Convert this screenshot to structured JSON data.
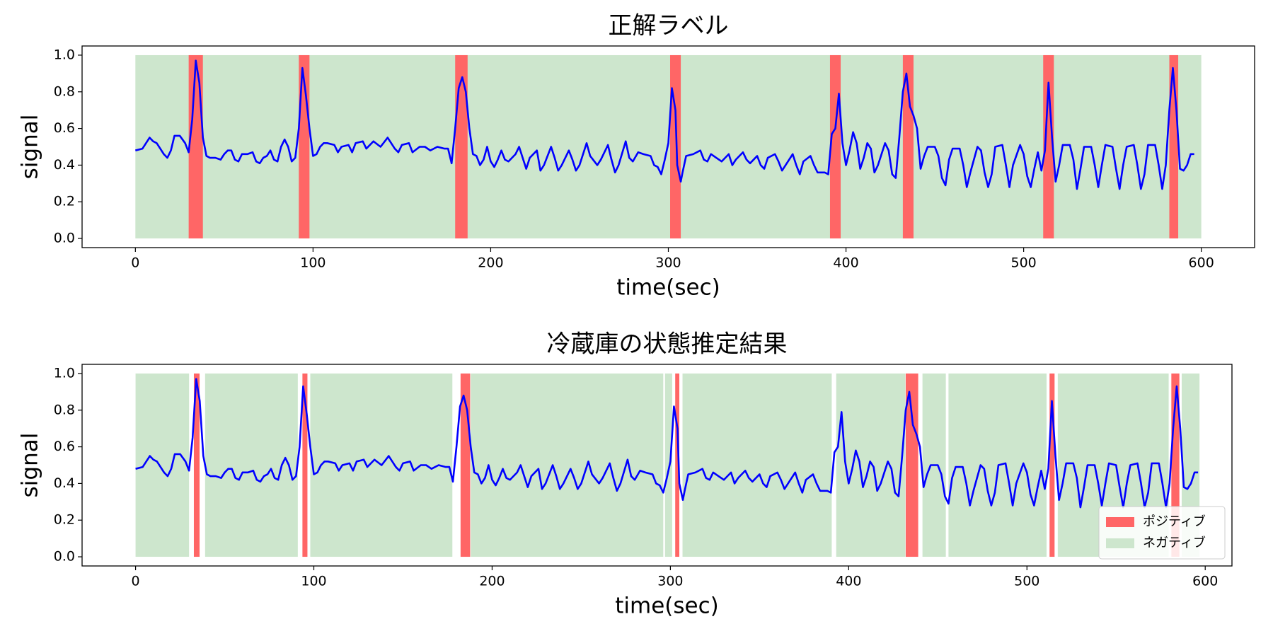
{
  "chart_data": [
    {
      "type": "line",
      "title": "正解ラベル",
      "xlabel": "time(sec)",
      "ylabel": "signal",
      "color": "#0000ff",
      "xlim": [
        -30,
        630
      ],
      "ylim": [
        -0.05,
        1.05
      ],
      "xticks": [
        0,
        100,
        200,
        300,
        400,
        500,
        600
      ],
      "yticks": [
        {
          "value": 0,
          "label": "0.0"
        },
        {
          "value": 0.2,
          "label": "0.2"
        },
        {
          "value": 0.4,
          "label": "0.4"
        },
        {
          "value": 0.6,
          "label": "0.6"
        },
        {
          "value": 0.8,
          "label": "0.8"
        },
        {
          "value": 1,
          "label": "1.0"
        }
      ],
      "regions": [
        {
          "color": "#cde6cd",
          "intervals": [
            [
              0,
              600
            ]
          ]
        },
        {
          "color": "#ff6666",
          "intervals": [
            [
              30,
              38
            ],
            [
              92,
              98
            ],
            [
              180,
              187
            ],
            [
              301,
              307
            ],
            [
              391,
              397
            ],
            [
              432,
              438
            ],
            [
              511,
              517
            ],
            [
              582,
              587
            ]
          ]
        }
      ],
      "x": [
        0,
        4,
        6,
        8,
        10,
        12,
        14,
        16,
        18,
        20,
        22,
        25,
        28,
        30,
        32,
        34,
        36,
        38,
        40,
        42,
        45,
        48,
        50,
        52,
        54,
        56,
        58,
        60,
        63,
        66,
        68,
        70,
        72,
        74,
        76,
        78,
        80,
        82,
        84,
        86,
        88,
        90,
        92,
        94,
        96,
        98,
        100,
        102,
        104,
        106,
        108,
        112,
        114,
        116,
        120,
        122,
        124,
        128,
        130,
        134,
        138,
        142,
        146,
        148,
        150,
        154,
        156,
        160,
        163,
        166,
        170,
        174,
        176,
        178,
        180,
        182,
        184,
        186,
        188,
        190,
        192,
        194,
        196,
        198,
        200,
        202,
        204,
        206,
        208,
        210,
        214,
        216,
        218,
        220,
        222,
        226,
        228,
        230,
        234,
        236,
        238,
        240,
        244,
        246,
        248,
        250,
        254,
        256,
        260,
        262,
        266,
        268,
        270,
        272,
        276,
        278,
        280,
        283,
        286,
        290,
        292,
        294,
        296,
        298,
        300,
        302,
        304,
        305,
        307,
        308,
        310,
        314,
        318,
        320,
        322,
        324,
        327,
        330,
        334,
        336,
        338,
        342,
        344,
        346,
        350,
        352,
        354,
        356,
        360,
        362,
        364,
        366,
        370,
        372,
        374,
        376,
        380,
        382,
        384,
        388,
        390,
        392,
        394,
        396,
        398,
        400,
        402,
        404,
        406,
        408,
        410,
        412,
        414,
        416,
        418,
        422,
        424,
        426,
        428,
        430,
        432,
        434,
        436,
        438,
        440,
        442,
        444,
        446,
        450,
        452,
        454,
        456,
        458,
        460,
        464,
        466,
        468,
        470,
        474,
        476,
        478,
        480,
        482,
        484,
        488,
        490,
        492,
        494,
        498,
        500,
        502,
        504,
        506,
        508,
        510,
        512,
        514,
        516,
        518,
        520,
        522,
        526,
        528,
        530,
        532,
        534,
        538,
        540,
        542,
        544,
        546,
        550,
        552,
        554,
        556,
        558,
        562,
        564,
        566,
        568,
        570,
        574,
        576,
        578,
        580,
        582,
        584,
        586,
        588,
        590,
        592,
        594,
        596
      ],
      "values": [
        0.48,
        0.49,
        0.52,
        0.55,
        0.53,
        0.52,
        0.49,
        0.46,
        0.44,
        0.48,
        0.56,
        0.56,
        0.52,
        0.47,
        0.65,
        0.97,
        0.85,
        0.55,
        0.45,
        0.44,
        0.44,
        0.43,
        0.46,
        0.48,
        0.48,
        0.43,
        0.42,
        0.46,
        0.46,
        0.47,
        0.42,
        0.41,
        0.44,
        0.45,
        0.48,
        0.43,
        0.42,
        0.5,
        0.54,
        0.5,
        0.42,
        0.44,
        0.6,
        0.93,
        0.78,
        0.6,
        0.45,
        0.46,
        0.5,
        0.52,
        0.52,
        0.51,
        0.47,
        0.5,
        0.51,
        0.47,
        0.52,
        0.53,
        0.49,
        0.53,
        0.5,
        0.55,
        0.49,
        0.47,
        0.51,
        0.52,
        0.47,
        0.5,
        0.5,
        0.48,
        0.5,
        0.49,
        0.49,
        0.41,
        0.6,
        0.82,
        0.88,
        0.8,
        0.6,
        0.46,
        0.45,
        0.4,
        0.43,
        0.5,
        0.42,
        0.39,
        0.43,
        0.48,
        0.43,
        0.42,
        0.46,
        0.5,
        0.44,
        0.38,
        0.44,
        0.48,
        0.37,
        0.4,
        0.5,
        0.44,
        0.37,
        0.4,
        0.48,
        0.43,
        0.37,
        0.4,
        0.52,
        0.45,
        0.4,
        0.43,
        0.51,
        0.43,
        0.36,
        0.4,
        0.53,
        0.44,
        0.42,
        0.47,
        0.46,
        0.45,
        0.4,
        0.39,
        0.35,
        0.43,
        0.52,
        0.82,
        0.7,
        0.4,
        0.31,
        0.36,
        0.45,
        0.46,
        0.48,
        0.43,
        0.42,
        0.46,
        0.44,
        0.42,
        0.46,
        0.4,
        0.43,
        0.47,
        0.43,
        0.41,
        0.45,
        0.4,
        0.38,
        0.44,
        0.46,
        0.42,
        0.37,
        0.4,
        0.46,
        0.4,
        0.35,
        0.42,
        0.45,
        0.4,
        0.36,
        0.36,
        0.35,
        0.57,
        0.6,
        0.79,
        0.52,
        0.4,
        0.48,
        0.58,
        0.52,
        0.38,
        0.44,
        0.52,
        0.49,
        0.36,
        0.4,
        0.52,
        0.48,
        0.35,
        0.33,
        0.55,
        0.8,
        0.9,
        0.72,
        0.67,
        0.6,
        0.38,
        0.45,
        0.5,
        0.5,
        0.45,
        0.33,
        0.29,
        0.43,
        0.49,
        0.49,
        0.4,
        0.28,
        0.36,
        0.5,
        0.48,
        0.36,
        0.28,
        0.35,
        0.5,
        0.51,
        0.4,
        0.28,
        0.4,
        0.51,
        0.46,
        0.34,
        0.28,
        0.38,
        0.47,
        0.37,
        0.48,
        0.85,
        0.55,
        0.31,
        0.4,
        0.51,
        0.51,
        0.43,
        0.27,
        0.38,
        0.5,
        0.5,
        0.4,
        0.28,
        0.4,
        0.51,
        0.5,
        0.38,
        0.27,
        0.4,
        0.5,
        0.51,
        0.4,
        0.27,
        0.35,
        0.51,
        0.51,
        0.4,
        0.27,
        0.4,
        0.7,
        0.93,
        0.7,
        0.38,
        0.37,
        0.4,
        0.46,
        0.46
      ]
    },
    {
      "type": "line",
      "title": "冷蔵庫の状態推定結果",
      "xlabel": "time(sec)",
      "ylabel": "signal",
      "color": "#0000ff",
      "xlim": [
        -30,
        615
      ],
      "ylim": [
        -0.05,
        1.05
      ],
      "xticks": [
        0,
        100,
        200,
        300,
        400,
        500,
        600
      ],
      "yticks": [
        {
          "value": 0,
          "label": "0.0"
        },
        {
          "value": 0.2,
          "label": "0.2"
        },
        {
          "value": 0.4,
          "label": "0.4"
        },
        {
          "value": 0.6,
          "label": "0.6"
        },
        {
          "value": 0.8,
          "label": "0.8"
        },
        {
          "value": 1,
          "label": "1.0"
        }
      ],
      "legend": "lower right",
      "regions": [
        {
          "name": "ポジティブ",
          "color": "#ff6666",
          "intervals": [
            [
              32.7,
              35.9
            ],
            [
              93.6,
              96.4
            ],
            [
              182.3,
              187.7
            ],
            [
              302.7,
              305
            ],
            [
              432,
              439
            ],
            [
              512.7,
              515.5
            ],
            [
              581,
              585.5
            ]
          ]
        },
        {
          "name": "ネガティブ",
          "color": "#cde6cd",
          "intervals": [
            [
              0,
              30
            ],
            [
              39,
              91
            ],
            [
              98,
              177.7
            ],
            [
              188,
              296
            ],
            [
              297,
              301
            ],
            [
              306.8,
              390.5
            ],
            [
              393,
              431.8
            ],
            [
              441.4,
              454.5
            ],
            [
              456,
              511
            ],
            [
              517.3,
              579.5
            ],
            [
              586.8,
              596.8
            ]
          ]
        }
      ],
      "x": [
        0,
        4,
        6,
        8,
        10,
        12,
        14,
        16,
        18,
        20,
        22,
        25,
        28,
        30,
        32,
        34,
        36,
        38,
        40,
        42,
        45,
        48,
        50,
        52,
        54,
        56,
        58,
        60,
        63,
        66,
        68,
        70,
        72,
        74,
        76,
        78,
        80,
        82,
        84,
        86,
        88,
        90,
        92,
        94,
        96,
        98,
        100,
        102,
        104,
        106,
        108,
        112,
        114,
        116,
        120,
        122,
        124,
        128,
        130,
        134,
        138,
        142,
        146,
        148,
        150,
        154,
        156,
        160,
        163,
        166,
        170,
        174,
        176,
        178,
        180,
        182,
        184,
        186,
        188,
        190,
        192,
        194,
        196,
        198,
        200,
        202,
        204,
        206,
        208,
        210,
        214,
        216,
        218,
        220,
        222,
        226,
        228,
        230,
        234,
        236,
        238,
        240,
        244,
        246,
        248,
        250,
        254,
        256,
        260,
        262,
        266,
        268,
        270,
        272,
        276,
        278,
        280,
        283,
        286,
        290,
        292,
        294,
        296,
        298,
        300,
        302,
        304,
        305,
        307,
        308,
        310,
        314,
        318,
        320,
        322,
        324,
        327,
        330,
        334,
        336,
        338,
        342,
        344,
        346,
        350,
        352,
        354,
        356,
        360,
        362,
        364,
        366,
        370,
        372,
        374,
        376,
        380,
        382,
        384,
        388,
        390,
        392,
        394,
        396,
        398,
        400,
        402,
        404,
        406,
        408,
        410,
        412,
        414,
        416,
        418,
        422,
        424,
        426,
        428,
        430,
        432,
        434,
        436,
        438,
        440,
        442,
        444,
        446,
        450,
        452,
        454,
        456,
        458,
        460,
        464,
        466,
        468,
        470,
        474,
        476,
        478,
        480,
        482,
        484,
        488,
        490,
        492,
        494,
        498,
        500,
        502,
        504,
        506,
        508,
        510,
        512,
        514,
        516,
        518,
        520,
        522,
        526,
        528,
        530,
        532,
        534,
        538,
        540,
        542,
        544,
        546,
        550,
        552,
        554,
        556,
        558,
        562,
        564,
        566,
        568,
        570,
        574,
        576,
        578,
        580,
        582,
        584,
        586,
        588,
        590,
        592,
        594,
        596
      ],
      "values": [
        0.48,
        0.49,
        0.52,
        0.55,
        0.53,
        0.52,
        0.49,
        0.46,
        0.44,
        0.48,
        0.56,
        0.56,
        0.52,
        0.47,
        0.65,
        0.97,
        0.85,
        0.55,
        0.45,
        0.44,
        0.44,
        0.43,
        0.46,
        0.48,
        0.48,
        0.43,
        0.42,
        0.46,
        0.46,
        0.47,
        0.42,
        0.41,
        0.44,
        0.45,
        0.48,
        0.43,
        0.42,
        0.5,
        0.54,
        0.5,
        0.42,
        0.44,
        0.6,
        0.93,
        0.78,
        0.6,
        0.45,
        0.46,
        0.5,
        0.52,
        0.52,
        0.51,
        0.47,
        0.5,
        0.51,
        0.47,
        0.52,
        0.53,
        0.49,
        0.53,
        0.5,
        0.55,
        0.49,
        0.47,
        0.51,
        0.52,
        0.47,
        0.5,
        0.5,
        0.48,
        0.5,
        0.49,
        0.49,
        0.41,
        0.6,
        0.82,
        0.88,
        0.8,
        0.6,
        0.46,
        0.45,
        0.4,
        0.43,
        0.5,
        0.42,
        0.39,
        0.43,
        0.48,
        0.43,
        0.42,
        0.46,
        0.5,
        0.44,
        0.38,
        0.44,
        0.48,
        0.37,
        0.4,
        0.5,
        0.44,
        0.37,
        0.4,
        0.48,
        0.43,
        0.37,
        0.4,
        0.52,
        0.45,
        0.4,
        0.43,
        0.51,
        0.43,
        0.36,
        0.4,
        0.53,
        0.44,
        0.42,
        0.47,
        0.46,
        0.45,
        0.4,
        0.39,
        0.35,
        0.43,
        0.52,
        0.82,
        0.7,
        0.4,
        0.31,
        0.36,
        0.45,
        0.46,
        0.48,
        0.43,
        0.42,
        0.46,
        0.44,
        0.42,
        0.46,
        0.4,
        0.43,
        0.47,
        0.43,
        0.41,
        0.45,
        0.4,
        0.38,
        0.44,
        0.46,
        0.42,
        0.37,
        0.4,
        0.46,
        0.4,
        0.35,
        0.42,
        0.45,
        0.4,
        0.36,
        0.36,
        0.35,
        0.57,
        0.6,
        0.79,
        0.52,
        0.4,
        0.48,
        0.58,
        0.52,
        0.38,
        0.44,
        0.52,
        0.49,
        0.36,
        0.4,
        0.52,
        0.48,
        0.35,
        0.33,
        0.55,
        0.8,
        0.9,
        0.72,
        0.67,
        0.6,
        0.38,
        0.45,
        0.5,
        0.5,
        0.45,
        0.33,
        0.29,
        0.43,
        0.49,
        0.49,
        0.4,
        0.28,
        0.36,
        0.5,
        0.48,
        0.36,
        0.28,
        0.35,
        0.5,
        0.51,
        0.4,
        0.28,
        0.4,
        0.51,
        0.46,
        0.34,
        0.28,
        0.38,
        0.47,
        0.37,
        0.48,
        0.85,
        0.55,
        0.31,
        0.4,
        0.51,
        0.51,
        0.43,
        0.27,
        0.38,
        0.5,
        0.5,
        0.4,
        0.28,
        0.4,
        0.51,
        0.5,
        0.38,
        0.27,
        0.4,
        0.5,
        0.51,
        0.4,
        0.27,
        0.35,
        0.51,
        0.51,
        0.4,
        0.27,
        0.4,
        0.7,
        0.93,
        0.7,
        0.38,
        0.37,
        0.4,
        0.46,
        0.46
      ]
    }
  ]
}
